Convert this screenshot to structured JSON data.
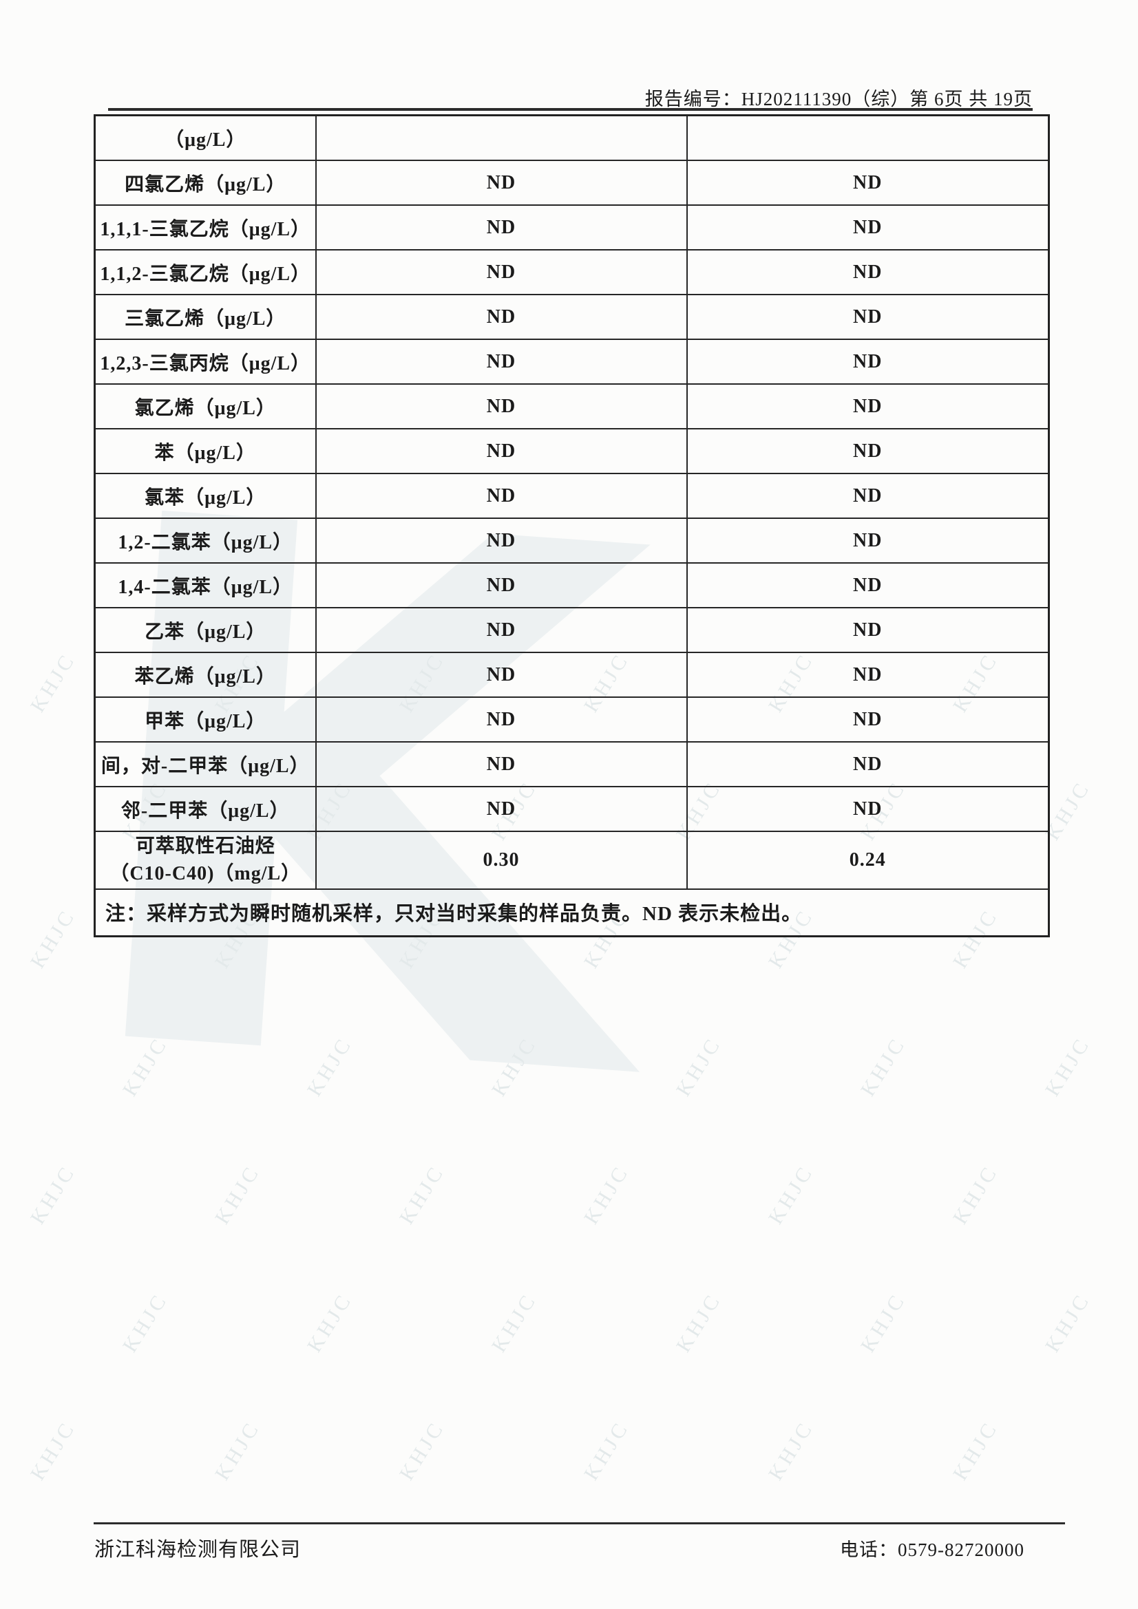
{
  "header": {
    "text": "报告编号：HJ202111390（综）第 6页 共 19页"
  },
  "table": {
    "columns": [
      "analyte",
      "result_1",
      "result_2"
    ],
    "header_continuation": {
      "label": "（μg/L）",
      "v1": "",
      "v2": ""
    },
    "rows": [
      {
        "label": "四氯乙烯（μg/L）",
        "v1": "ND",
        "v2": "ND"
      },
      {
        "label": "1,1,1-三氯乙烷（μg/L）",
        "v1": "ND",
        "v2": "ND"
      },
      {
        "label": "1,1,2-三氯乙烷（μg/L）",
        "v1": "ND",
        "v2": "ND"
      },
      {
        "label": "三氯乙烯（μg/L）",
        "v1": "ND",
        "v2": "ND"
      },
      {
        "label": "1,2,3-三氯丙烷（μg/L）",
        "v1": "ND",
        "v2": "ND"
      },
      {
        "label": "氯乙烯（μg/L）",
        "v1": "ND",
        "v2": "ND"
      },
      {
        "label": "苯（μg/L）",
        "v1": "ND",
        "v2": "ND"
      },
      {
        "label": "氯苯（μg/L）",
        "v1": "ND",
        "v2": "ND"
      },
      {
        "label": "1,2-二氯苯（μg/L）",
        "v1": "ND",
        "v2": "ND"
      },
      {
        "label": "1,4-二氯苯（μg/L）",
        "v1": "ND",
        "v2": "ND"
      },
      {
        "label": "乙苯（μg/L）",
        "v1": "ND",
        "v2": "ND"
      },
      {
        "label": "苯乙烯（μg/L）",
        "v1": "ND",
        "v2": "ND"
      },
      {
        "label": "甲苯（μg/L）",
        "v1": "ND",
        "v2": "ND"
      },
      {
        "label": "间，对-二甲苯（μg/L）",
        "v1": "ND",
        "v2": "ND"
      },
      {
        "label": "邻-二甲苯（μg/L）",
        "v1": "ND",
        "v2": "ND"
      },
      {
        "label": "可萃取性石油烃",
        "label2": "（C10-C40)（mg/L）",
        "v1": "0.30",
        "v2": "0.24",
        "tall": true
      }
    ],
    "note": "注：采样方式为瞬时随机采样，只对当时采集的样品负责。ND 表示未检出。"
  },
  "footer": {
    "company": "浙江科海检测有限公司",
    "phone": "电话：0579-82720000"
  },
  "watermark": {
    "tile_text": "KHJC",
    "logo_text": "K",
    "tile_color": "#e3e9ea",
    "logo_color": "#edf1f2"
  },
  "colors": {
    "text": "#1b1b1b",
    "border": "#262626",
    "paper": "#fcfcfb"
  }
}
